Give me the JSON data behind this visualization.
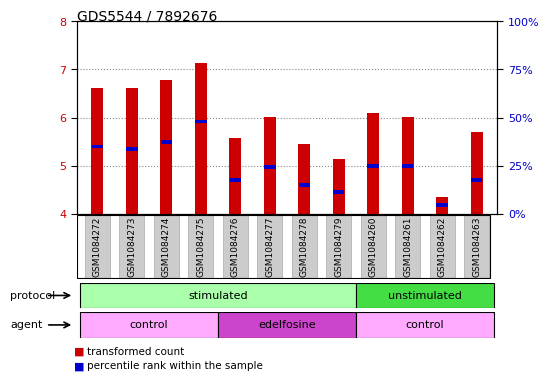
{
  "title": "GDS5544 / 7892676",
  "samples": [
    "GSM1084272",
    "GSM1084273",
    "GSM1084274",
    "GSM1084275",
    "GSM1084276",
    "GSM1084277",
    "GSM1084278",
    "GSM1084279",
    "GSM1084260",
    "GSM1084261",
    "GSM1084262",
    "GSM1084263"
  ],
  "transformed_count": [
    6.62,
    6.62,
    6.78,
    7.13,
    5.58,
    6.02,
    5.46,
    5.15,
    6.1,
    6.02,
    4.35,
    5.7
  ],
  "percentile_rank": [
    5.4,
    5.35,
    5.5,
    5.92,
    4.7,
    4.97,
    4.6,
    4.45,
    5.0,
    5.0,
    4.18,
    4.7
  ],
  "ylim": [
    4,
    8
  ],
  "yticks_left": [
    4,
    5,
    6,
    7,
    8
  ],
  "yticks_right_labels": [
    "0%",
    "25%",
    "50%",
    "75%",
    "100%"
  ],
  "bar_color": "#cc0000",
  "percentile_color": "#0000cc",
  "bar_width": 0.35,
  "protocol_stimulated_color": "#aaffaa",
  "protocol_unstimulated_color": "#44dd44",
  "agent_control_color": "#ffaaff",
  "agent_edelfosine_color": "#cc44cc",
  "grid_color": "#888888",
  "background_color": "#ffffff",
  "tick_label_color_left": "#cc0000",
  "tick_label_color_right": "#0000cc",
  "xtick_bg_color": "#cccccc",
  "xtick_border_color": "#aaaaaa"
}
